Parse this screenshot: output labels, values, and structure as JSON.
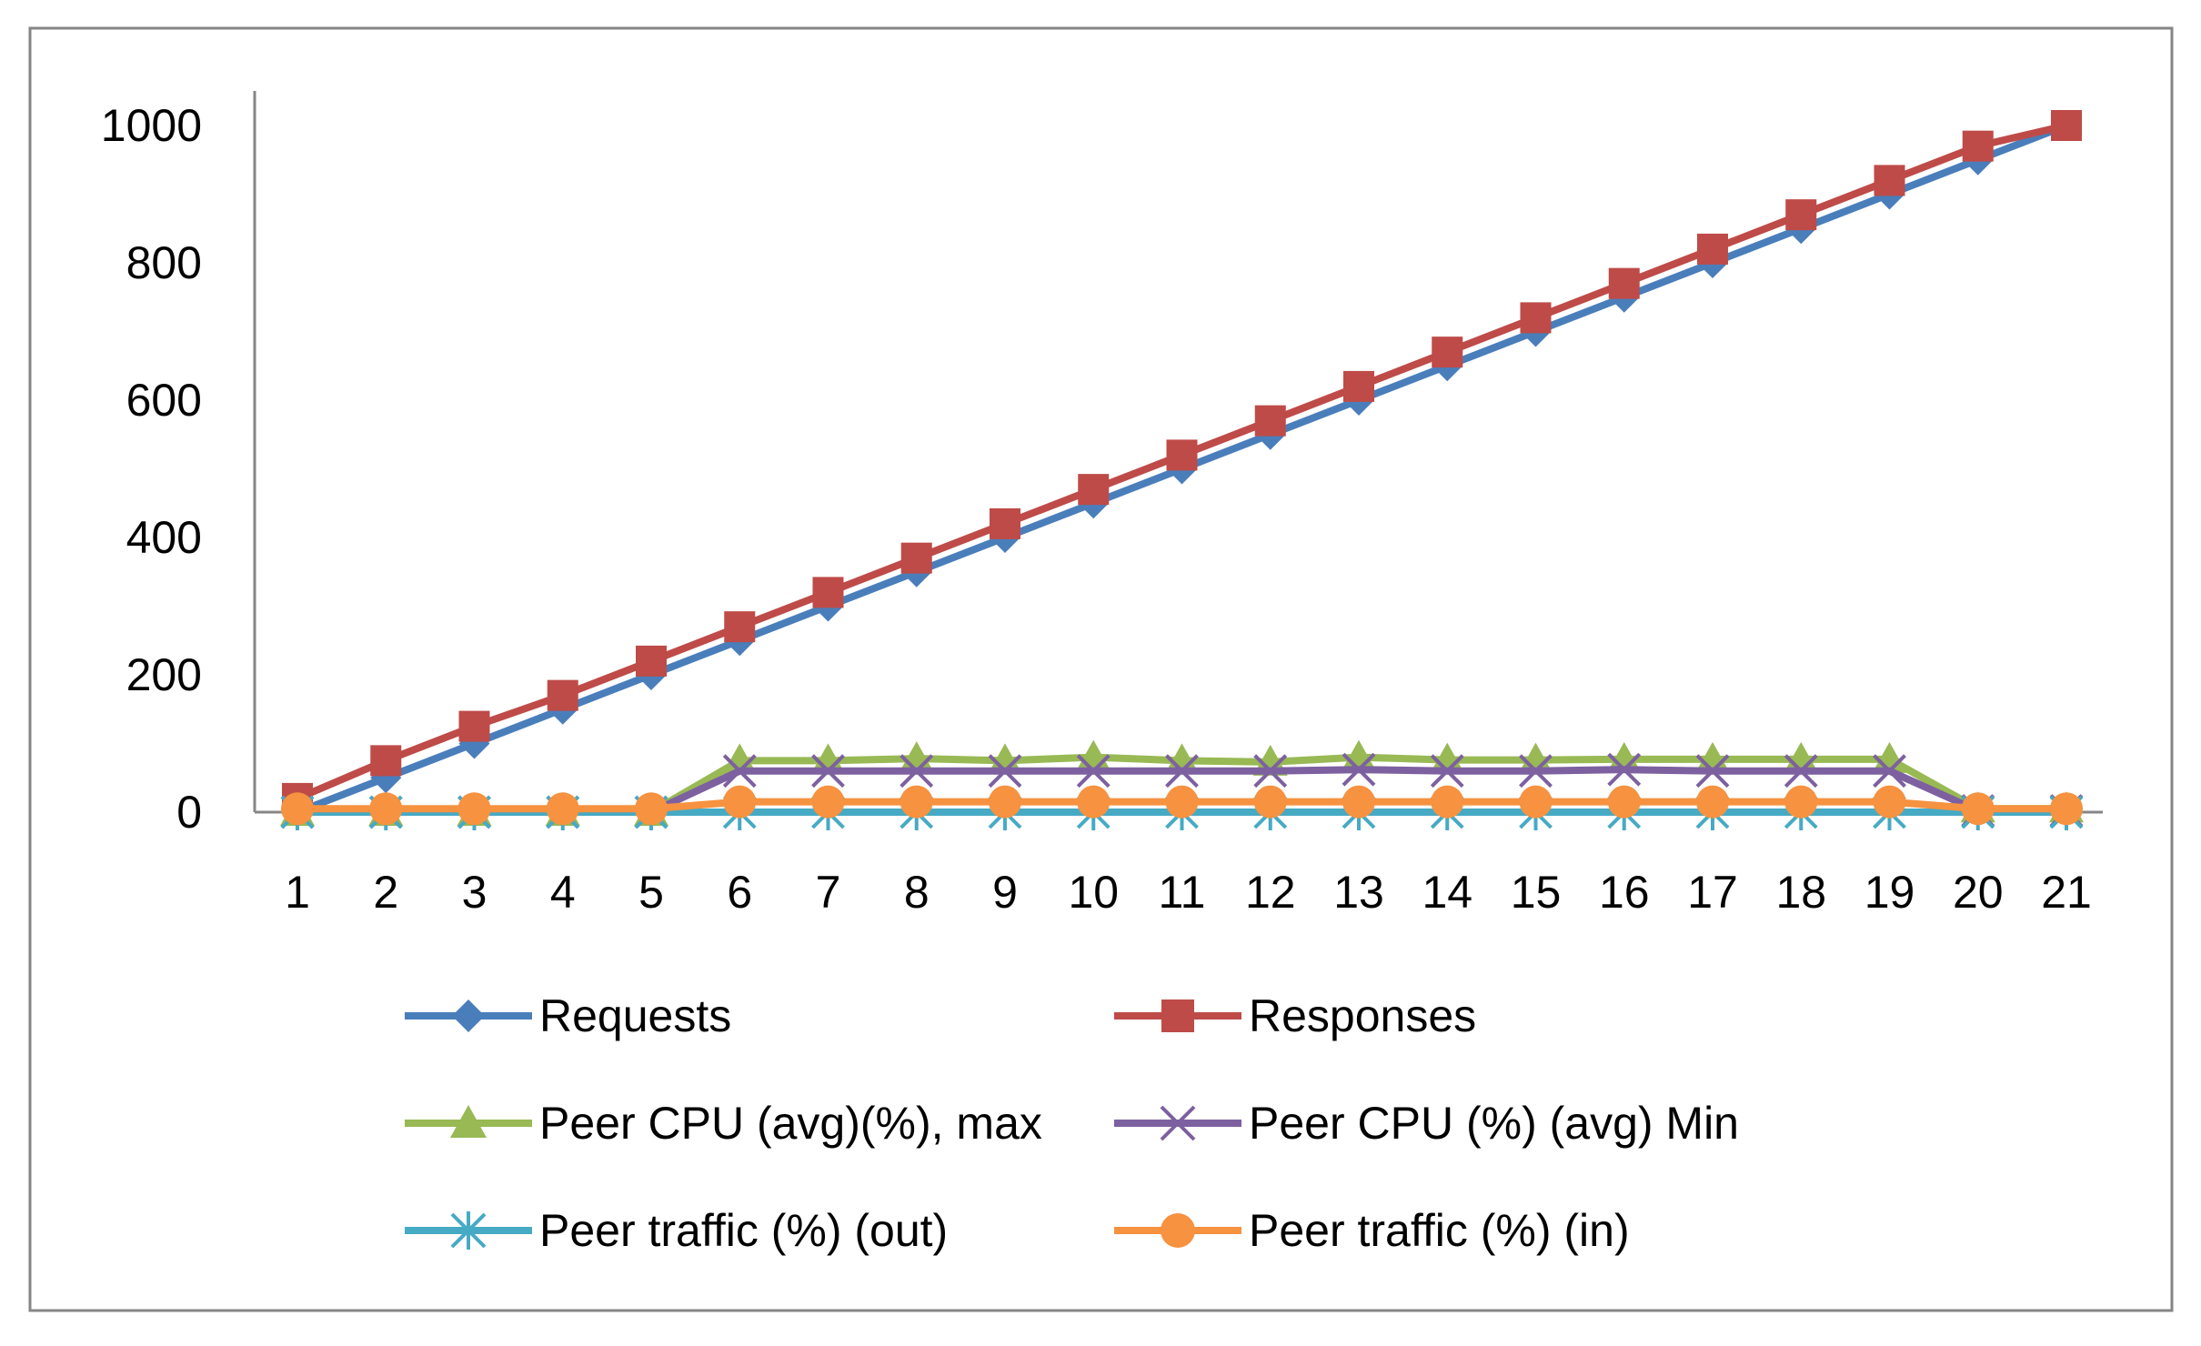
{
  "chart_data": {
    "type": "line",
    "title": "",
    "xlabel": "",
    "ylabel": "",
    "ylim": [
      0,
      1000
    ],
    "yticks": [
      0,
      200,
      400,
      600,
      800,
      1000
    ],
    "grid": false,
    "legend_position": "bottom",
    "x": [
      "1",
      "2",
      "3",
      "4",
      "5",
      "6",
      "7",
      "8",
      "9",
      "10",
      "11",
      "12",
      "13",
      "14",
      "15",
      "16",
      "17",
      "18",
      "19",
      "20",
      "21"
    ],
    "series": [
      {
        "name": "Requests",
        "color": "#4a7ebb",
        "marker": "diamond",
        "values": [
          0,
          50,
          100,
          150,
          200,
          250,
          300,
          350,
          400,
          450,
          500,
          550,
          600,
          650,
          700,
          750,
          800,
          850,
          900,
          950,
          1000
        ]
      },
      {
        "name": "Responses",
        "color": "#be4b48",
        "marker": "square",
        "values": [
          20,
          75,
          125,
          170,
          220,
          270,
          320,
          370,
          420,
          470,
          520,
          570,
          620,
          670,
          720,
          770,
          820,
          870,
          920,
          970,
          1000
        ]
      },
      {
        "name": "Peer CPU (avg)(%), max",
        "color": "#98b954",
        "marker": "triangle",
        "values": [
          0,
          0,
          0,
          0,
          0,
          75,
          75,
          78,
          75,
          80,
          75,
          73,
          80,
          76,
          76,
          77,
          77,
          77,
          77,
          5,
          5
        ]
      },
      {
        "name": "Peer CPU (%) (avg) Min",
        "color": "#7d60a0",
        "marker": "x",
        "values": [
          0,
          0,
          0,
          0,
          0,
          60,
          60,
          60,
          60,
          60,
          60,
          60,
          62,
          60,
          60,
          62,
          60,
          60,
          60,
          2,
          2
        ]
      },
      {
        "name": "Peer traffic (%) (out)",
        "color": "#46aac5",
        "marker": "asterisk",
        "values": [
          0,
          0,
          0,
          0,
          0,
          0,
          0,
          0,
          0,
          0,
          0,
          0,
          0,
          0,
          0,
          0,
          0,
          0,
          0,
          0,
          0
        ]
      },
      {
        "name": "Peer traffic (%) (in)",
        "color": "#f69240",
        "marker": "circle",
        "values": [
          5,
          5,
          5,
          5,
          5,
          15,
          15,
          15,
          15,
          15,
          15,
          15,
          15,
          15,
          15,
          15,
          15,
          15,
          15,
          5,
          5
        ]
      }
    ]
  }
}
